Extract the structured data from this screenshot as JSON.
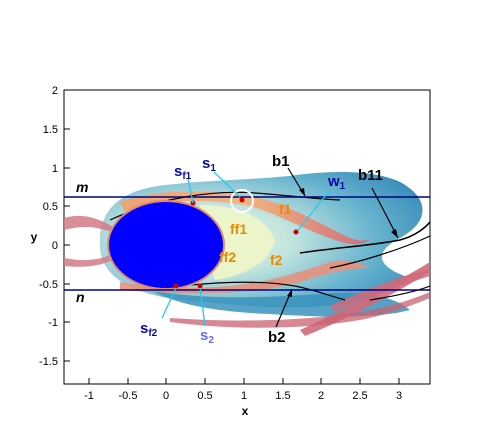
{
  "axes": {
    "xlabel": "x",
    "ylabel": "y",
    "x_ticks": [
      "-1",
      "-0.5",
      "0",
      "0.5",
      "1",
      "1.5",
      "2",
      "2.5",
      "3"
    ],
    "y_ticks": [
      "2",
      "1.5",
      "1",
      "0.5",
      "0",
      "-0.5",
      "-1",
      "-1.5"
    ]
  },
  "labels": {
    "m": "m",
    "n": "n",
    "s": "s",
    "s_f1_sub": "f1",
    "s_1_sub": "1",
    "s_f2_sub": "f2",
    "s_2_sub": "2",
    "w": "w",
    "w_1_sub": "1",
    "b1": "b1",
    "b11": "b11",
    "b2": "b2",
    "f1": "f1",
    "ff1": "ff1",
    "ff2": "ff2",
    "f2": "f2"
  },
  "colors": {
    "cylinder": "#0000ff",
    "reference_lines": "#000080",
    "blue_labels": "#0a0aa0",
    "cyan_leaders": "#22ccee",
    "orange_labels": "#e68a00",
    "streaks": "#d06a7a",
    "wake_dark": "#1f7aa8",
    "wake_light": "#7fc9d8",
    "near_wake": "#e6f2c8"
  }
}
